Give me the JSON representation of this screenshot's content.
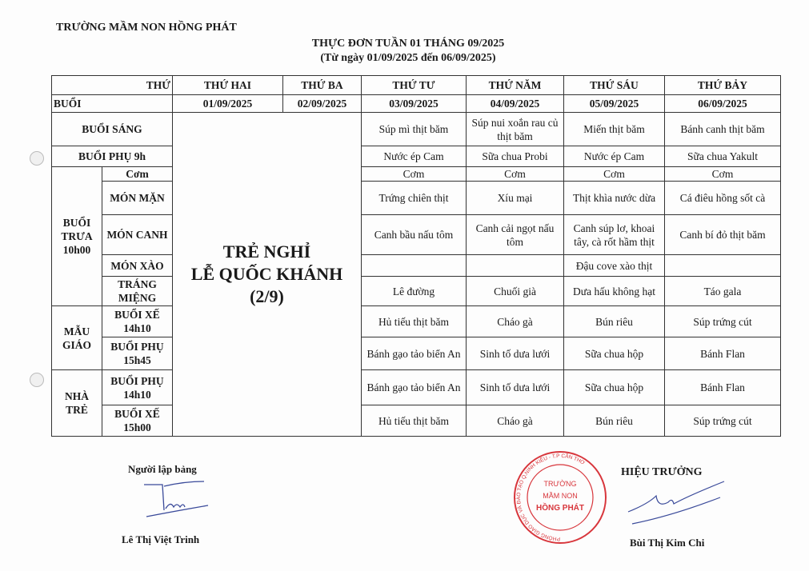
{
  "header": {
    "school": "TRƯỜNG MẦM NON HỒNG PHÁT",
    "title": "THỰC ĐƠN TUẦN 01 THÁNG 09/2025",
    "subtitle": "(Từ ngày 01/09/2025 đến 06/09/2025)"
  },
  "table": {
    "corner_top": "THỨ",
    "corner_bottom": "BUỔI",
    "days": [
      "THỨ HAI",
      "THỨ BA",
      "THỨ TƯ",
      "THỨ NĂM",
      "THỨ SÁU",
      "THỨ BẢY"
    ],
    "dates": [
      "01/09/2025",
      "02/09/2025",
      "03/09/2025",
      "04/09/2025",
      "05/09/2025",
      "06/09/2025"
    ],
    "holiday": {
      "line1": "TRẺ NGHỈ",
      "line2": "LỄ QUỐC KHÁNH",
      "line3": "(2/9)"
    },
    "groups": {
      "trua": "BUỔI TRƯA 10h00",
      "mau_giao": "MẪU GIÁO",
      "nha_tre": "NHÀ TRẺ"
    },
    "rows": [
      {
        "label": "BUỔI SÁNG",
        "values": [
          "Súp mì thịt băm",
          "Súp nui xoắn rau củ thịt băm",
          "Miến thịt băm",
          "Bánh canh thịt băm"
        ]
      },
      {
        "label": "BUỔI PHỤ 9h",
        "values": [
          "Nước ép Cam",
          "Sữa chua Probi",
          "Nước ép Cam",
          "Sữa chua Yakult"
        ]
      },
      {
        "label": "Cơm",
        "values": [
          "Cơm",
          "Cơm",
          "Cơm",
          "Cơm"
        ]
      },
      {
        "label": "MÓN  MẶN",
        "values": [
          "Trứng chiên thịt",
          "Xíu mại",
          "Thịt khìa nước dừa",
          "Cá điêu hồng sốt cà"
        ]
      },
      {
        "label": "MÓN CANH",
        "values": [
          "Canh bầu nấu tôm",
          "Canh cải ngọt nấu tôm",
          "Canh súp lơ, khoai tây, cà rốt hầm thịt",
          "Canh bí đỏ thịt băm"
        ]
      },
      {
        "label": "MÓN XÀO",
        "values": [
          "",
          "",
          "Đậu cove xào thịt",
          ""
        ]
      },
      {
        "label": "TRÁNG MIỆNG",
        "values": [
          "Lê đường",
          "Chuối già",
          "Dưa hấu không hạt",
          "Táo gala"
        ]
      },
      {
        "label": "BUỔI XẾ 14h10",
        "values": [
          "Hủ tiếu thịt băm",
          "Cháo gà",
          "Bún riêu",
          "Súp trứng cút"
        ]
      },
      {
        "label": "BUỔI PHỤ 15h45",
        "values": [
          "Bánh gạo tảo biển An",
          "Sinh tố dưa lưới",
          "Sữa chua hộp",
          "Bánh Flan"
        ]
      },
      {
        "label": "BUỔI PHỤ 14h10",
        "values": [
          "Bánh gạo tảo biển An",
          "Sinh tố dưa lưới",
          "Sữa chua hộp",
          "Bánh Flan"
        ]
      },
      {
        "label": "BUỔI XẾ 15h00",
        "values": [
          "Hủ tiếu thịt băm",
          "Cháo gà",
          "Bún riêu",
          "Súp trứng cút"
        ]
      }
    ]
  },
  "signatures": {
    "preparer_title": "Người lập bảng",
    "preparer_name": "Lê Thị Việt Trinh",
    "principal_title": "HIỆU TRƯỞNG",
    "principal_name": "Bùi Thị Kim Chi",
    "stamp": {
      "ring": "PHÒNG GIÁO DỤC VÀ ĐÀO TẠO Q.NINH KIỀU - T.P CẦN THƠ",
      "center": [
        "TRƯỜNG",
        "MẦM NON",
        "HỒNG PHÁT"
      ],
      "color": "#d8363c"
    }
  }
}
